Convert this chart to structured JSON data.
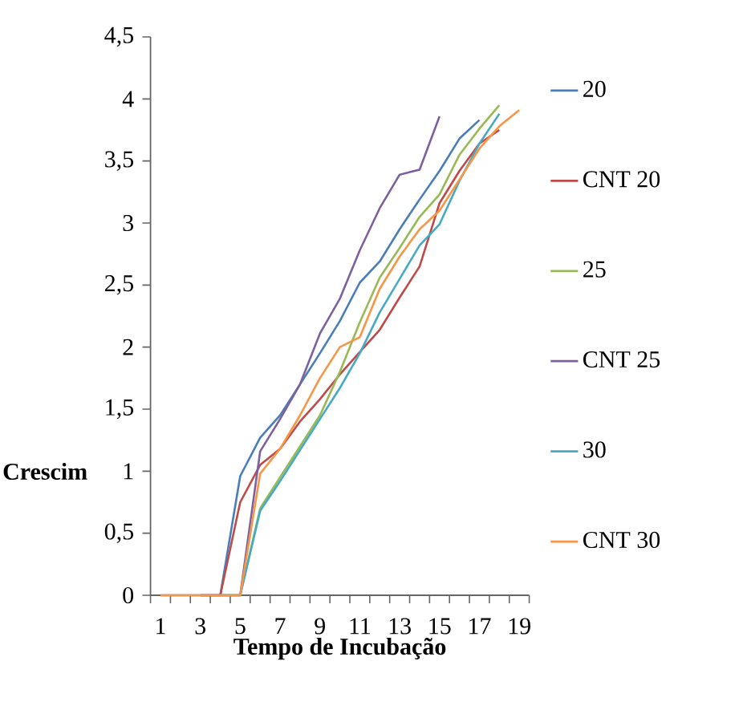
{
  "chart_data": {
    "type": "line",
    "xlabel": "Tempo de Incubação",
    "ylabel": "Crescim",
    "categories": [
      "1",
      null,
      "3",
      null,
      "5",
      null,
      "7",
      null,
      "9",
      null,
      "11",
      null,
      "13",
      null,
      "15",
      null,
      "17",
      null,
      "19"
    ],
    "ylim": [
      0,
      4.5
    ],
    "yticks": [
      0,
      {
        "value": 0.5,
        "label": "0,5"
      },
      1,
      {
        "value": 1.5,
        "label": "1,5"
      },
      2,
      {
        "value": 2.5,
        "label": "2,5"
      },
      3,
      {
        "value": 3.5,
        "label": "3,5"
      },
      4,
      {
        "value": 4.5,
        "label": "4,5"
      }
    ],
    "legend": "right",
    "series": [
      {
        "name": "20",
        "color": "#4a7ebb",
        "values": [
          null,
          null,
          0,
          0,
          0.96,
          1.27,
          1.45,
          1.7,
          1.95,
          2.21,
          2.52,
          2.69,
          2.95,
          3.19,
          3.42,
          3.68,
          3.83,
          null,
          null
        ]
      },
      {
        "name": "CNT 20",
        "color": "#be4b48",
        "values": [
          null,
          null,
          0,
          0,
          0.75,
          1.05,
          1.18,
          1.4,
          1.58,
          1.78,
          1.96,
          2.14,
          2.4,
          2.65,
          3.16,
          3.42,
          3.64,
          3.75,
          null
        ]
      },
      {
        "name": "25",
        "color": "#98b954",
        "values": [
          null,
          null,
          null,
          0,
          0,
          0.7,
          0.95,
          1.2,
          1.45,
          1.8,
          2.2,
          2.56,
          2.8,
          3.05,
          3.23,
          3.55,
          3.76,
          3.95,
          null
        ]
      },
      {
        "name": "CNT 25",
        "color": "#7d60a0",
        "values": [
          0,
          0,
          0,
          0,
          0,
          1.16,
          1.42,
          1.7,
          2.11,
          2.39,
          2.78,
          3.12,
          3.39,
          3.43,
          3.86,
          null,
          null,
          null,
          null
        ]
      },
      {
        "name": "30",
        "color": "#46aac5",
        "values": [
          null,
          null,
          null,
          0,
          0,
          0.68,
          0.92,
          1.17,
          1.42,
          1.67,
          1.95,
          2.28,
          2.55,
          2.82,
          2.99,
          3.34,
          3.64,
          3.88,
          null
        ]
      },
      {
        "name": "CNT 30",
        "color": "#f79646",
        "values": [
          0,
          0,
          0,
          0,
          0,
          0.98,
          1.18,
          1.45,
          1.75,
          2.0,
          2.08,
          2.47,
          2.73,
          2.95,
          3.1,
          3.35,
          3.6,
          3.78,
          3.91
        ]
      }
    ]
  }
}
